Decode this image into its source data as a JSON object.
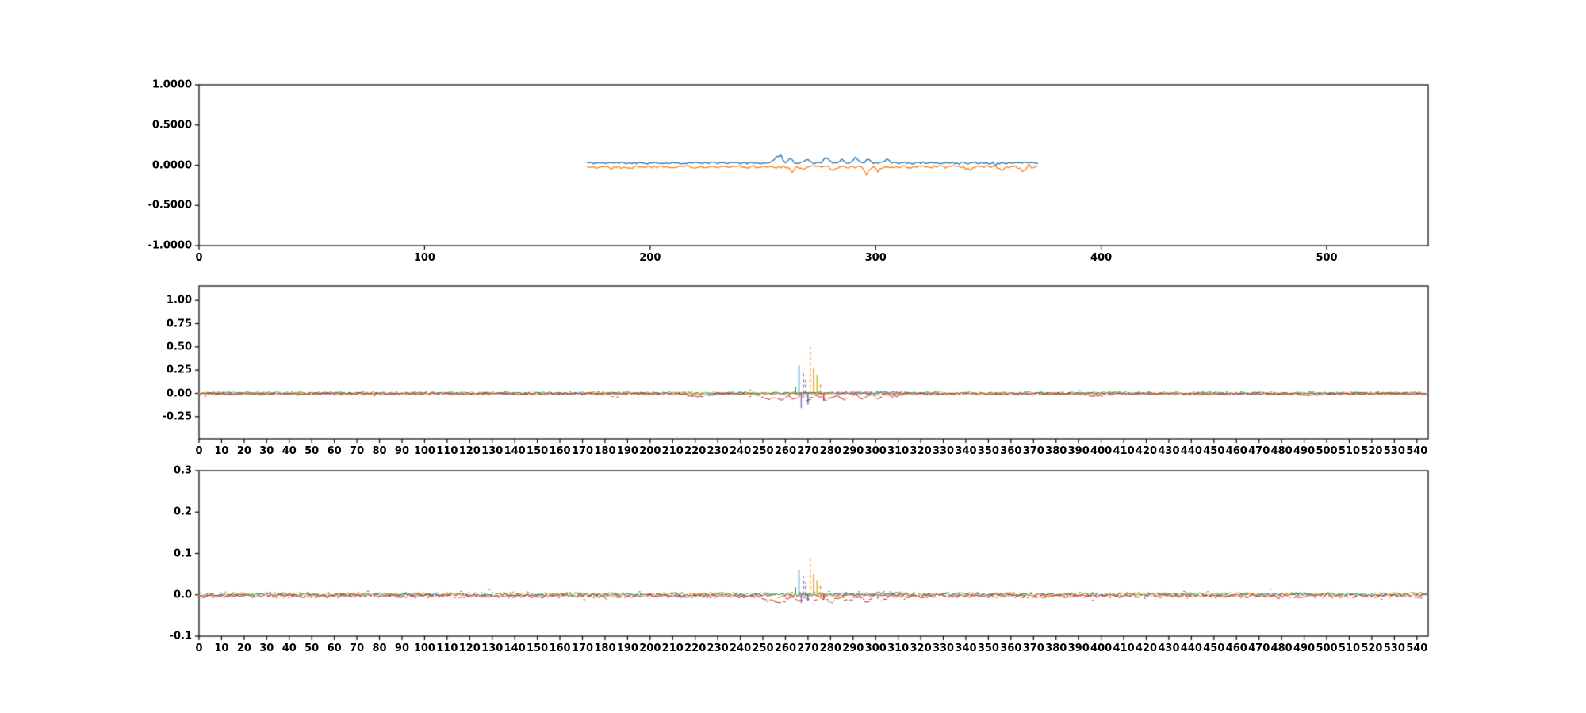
{
  "figure": {
    "background": "#ffffff",
    "frame_color": "#000000",
    "tick_label_color": "#000000"
  },
  "palette": {
    "blue": "#1f77b4",
    "orange": "#ff7f0e",
    "green": "#2ca02c",
    "red": "#d62728",
    "purple": "#9467bd",
    "olive": "#bcbd22"
  },
  "chart_data": [
    {
      "type": "line",
      "title": "",
      "xlabel": "",
      "ylabel": "",
      "grid": false,
      "legend": null,
      "xlim": [
        0,
        545
      ],
      "ylim": [
        -1.0,
        1.0
      ],
      "xticks": [
        0,
        100,
        200,
        300,
        400,
        500
      ],
      "xtick_labels": [
        "0",
        "100",
        "200",
        "300",
        "400",
        "500"
      ],
      "yticks": [
        1.0,
        0.5,
        0.0,
        -0.5,
        -1.0
      ],
      "ytick_labels": [
        "1.0000",
        "0.5000",
        "0.0000",
        "-0.5000",
        "-1.0000"
      ],
      "description": "Two noisy signals present only for x in [172,372]; blue hovers just above 0, orange just below 0, small spikes near x=255-300",
      "series": [
        {
          "name": "signal-blue",
          "kind": "line",
          "color": "#1f77b4",
          "x_start": 172,
          "x_end": 372,
          "baseline": 0.028,
          "noise_amp": 0.012,
          "seed": 11,
          "peaks": [
            [
              256,
              0.07,
              1.4
            ],
            [
              258,
              0.1,
              1.0
            ],
            [
              262,
              0.05,
              1.5
            ],
            [
              270,
              0.045,
              1.5
            ],
            [
              278,
              0.055,
              1.6
            ],
            [
              285,
              0.045,
              1.5
            ],
            [
              291,
              0.08,
              1.2
            ],
            [
              297,
              0.045,
              1.5
            ],
            [
              305,
              0.04,
              1.5
            ]
          ]
        },
        {
          "name": "signal-orange",
          "kind": "line",
          "color": "#ff7f0e",
          "x_start": 172,
          "x_end": 372,
          "baseline": -0.02,
          "noise_amp": 0.016,
          "seed": 22,
          "peaks": [
            [
              263,
              -0.06,
              1.6
            ],
            [
              268,
              -0.045,
              1.5
            ],
            [
              281,
              -0.05,
              1.5
            ],
            [
              296,
              -0.09,
              1.3
            ],
            [
              301,
              -0.055,
              1.4
            ],
            [
              342,
              -0.045,
              1.5
            ],
            [
              356,
              -0.06,
              1.4
            ],
            [
              365,
              -0.05,
              1.3
            ]
          ]
        }
      ]
    },
    {
      "type": "line",
      "title": "",
      "xlabel": "",
      "ylabel": "",
      "grid": false,
      "legend": null,
      "xlim": [
        0,
        545
      ],
      "ylim": [
        -0.49,
        1.155
      ],
      "xticks": [
        0,
        10,
        20,
        30,
        40,
        50,
        60,
        70,
        80,
        90,
        100,
        110,
        120,
        130,
        140,
        150,
        160,
        170,
        180,
        190,
        200,
        210,
        220,
        230,
        240,
        250,
        260,
        270,
        280,
        290,
        300,
        310,
        320,
        330,
        340,
        350,
        360,
        370,
        380,
        390,
        400,
        410,
        420,
        430,
        440,
        450,
        460,
        470,
        480,
        490,
        500,
        510,
        520,
        530,
        540
      ],
      "yticks": [
        1.0,
        0.75,
        0.5,
        0.25,
        0.0,
        -0.25
      ],
      "ytick_labels": [
        "1.00",
        "0.75",
        "0.50",
        "0.25",
        "0.00",
        "-0.25"
      ],
      "description": "Multi-colored residual noise hugging y=0 across full x range; red dips to about -0.08 between x=250-310; burst of vertical spikes near x=265-277 reaching 0.50 (orange dashed) and 0.30 (blue), with negative spikes to -0.16",
      "series": [
        {
          "name": "noise-green",
          "kind": "dashes",
          "color": "#2ca02c",
          "x_start": 0,
          "x_end": 545,
          "baseline": 0.005,
          "noise_amp": 0.01,
          "seed": 3,
          "skip": 0.1
        },
        {
          "name": "noise-blue",
          "kind": "dashes",
          "color": "#1f77b4",
          "x_start": 0,
          "x_end": 545,
          "baseline": 0.0,
          "noise_amp": 0.007,
          "seed": 4,
          "skip": 0.2,
          "dips": [
            [
              218,
              -0.025,
              3
            ],
            [
              226,
              -0.02,
              2
            ]
          ]
        },
        {
          "name": "noise-orange",
          "kind": "dashes",
          "color": "#ff7f0e",
          "x_start": 0,
          "x_end": 545,
          "baseline": -0.004,
          "noise_amp": 0.008,
          "seed": 5,
          "skip": 0.2,
          "dips": [
            [
              300,
              -0.02,
              3
            ]
          ]
        },
        {
          "name": "noise-red",
          "kind": "dashes",
          "color": "#d62728",
          "x_start": 0,
          "x_end": 545,
          "baseline": -0.007,
          "noise_amp": 0.01,
          "seed": 6,
          "skip": 0.15,
          "dips": [
            [
              222,
              -0.03,
              4
            ],
            [
              252,
              -0.05,
              3
            ],
            [
              258,
              -0.06,
              3
            ],
            [
              264,
              -0.05,
              2
            ],
            [
              270,
              -0.07,
              2
            ],
            [
              278,
              -0.06,
              3
            ],
            [
              286,
              -0.05,
              3
            ],
            [
              294,
              -0.06,
              2
            ],
            [
              301,
              -0.05,
              2
            ],
            [
              308,
              -0.03,
              2
            ],
            [
              397,
              -0.022,
              3
            ],
            [
              492,
              -0.02,
              3
            ]
          ]
        },
        {
          "name": "noise-purple-post-event",
          "kind": "dashes",
          "color": "#9467bd",
          "x_start": 282,
          "x_end": 312,
          "baseline": 0.01,
          "noise_amp": 0.01,
          "seed": 9,
          "skip": 0.3
        },
        {
          "name": "event-spikes",
          "kind": "vspikes",
          "spikes": [
            {
              "x": 264.5,
              "y": 0.07,
              "color": "#2ca02c",
              "dash": false
            },
            {
              "x": 266.0,
              "y": 0.3,
              "color": "#1f77b4",
              "dash": false
            },
            {
              "x": 267.0,
              "y": -0.16,
              "color": "#9467bd",
              "dash": false
            },
            {
              "x": 268.0,
              "y": 0.24,
              "color": "#9467bd",
              "dash": true
            },
            {
              "x": 269.0,
              "y": 0.14,
              "color": "#1f77b4",
              "dash": true
            },
            {
              "x": 270.0,
              "y": -0.12,
              "color": "#1f77b4",
              "dash": false
            },
            {
              "x": 271.0,
              "y": 0.5,
              "color": "#ff7f0e",
              "dash": true
            },
            {
              "x": 272.5,
              "y": 0.28,
              "color": "#ff7f0e",
              "dash": false
            },
            {
              "x": 274.0,
              "y": 0.2,
              "color": "#bcbd22",
              "dash": false
            },
            {
              "x": 275.5,
              "y": 0.12,
              "color": "#ff7f0e",
              "dash": true
            },
            {
              "x": 277.0,
              "y": -0.08,
              "color": "#d62728",
              "dash": false
            }
          ]
        }
      ]
    },
    {
      "type": "line",
      "title": "",
      "xlabel": "",
      "ylabel": "",
      "grid": false,
      "legend": null,
      "xlim": [
        0,
        545
      ],
      "ylim": [
        -0.1,
        0.3
      ],
      "xticks": [
        0,
        10,
        20,
        30,
        40,
        50,
        60,
        70,
        80,
        90,
        100,
        110,
        120,
        130,
        140,
        150,
        160,
        170,
        180,
        190,
        200,
        210,
        220,
        230,
        240,
        250,
        260,
        270,
        280,
        290,
        300,
        310,
        320,
        330,
        340,
        350,
        360,
        370,
        380,
        390,
        400,
        410,
        420,
        430,
        440,
        450,
        460,
        470,
        480,
        490,
        500,
        510,
        520,
        530,
        540
      ],
      "yticks": [
        0.3,
        0.2,
        0.1,
        0.0,
        -0.1
      ],
      "ytick_labels": [
        "0.3",
        "0.2",
        "0.1",
        "0.0",
        "-0.1"
      ],
      "description": "Same residual noise at smaller scale; spike burst near x=265-277 reaching 0.09 (orange dashed) and 0.06 (blue), small negative red dips between x=250-305",
      "series": [
        {
          "name": "noise-green",
          "kind": "dashes",
          "color": "#2ca02c",
          "x_start": 0,
          "x_end": 545,
          "baseline": 0.0015,
          "noise_amp": 0.004,
          "seed": 13,
          "skip": 0.1
        },
        {
          "name": "noise-blue",
          "kind": "dashes",
          "color": "#1f77b4",
          "x_start": 0,
          "x_end": 545,
          "baseline": 0.0,
          "noise_amp": 0.003,
          "seed": 14,
          "skip": 0.2,
          "dips": [
            [
              218,
              -0.008,
              3
            ]
          ]
        },
        {
          "name": "noise-orange",
          "kind": "dashes",
          "color": "#ff7f0e",
          "x_start": 0,
          "x_end": 545,
          "baseline": -0.001,
          "noise_amp": 0.0035,
          "seed": 15,
          "skip": 0.2
        },
        {
          "name": "noise-red",
          "kind": "dashes",
          "color": "#d62728",
          "x_start": 0,
          "x_end": 545,
          "baseline": -0.003,
          "noise_amp": 0.004,
          "seed": 16,
          "skip": 0.15,
          "dips": [
            [
              252,
              -0.012,
              3
            ],
            [
              258,
              -0.014,
              3
            ],
            [
              266,
              -0.012,
              2
            ],
            [
              272,
              -0.016,
              2
            ],
            [
              280,
              -0.014,
              3
            ],
            [
              288,
              -0.012,
              3
            ],
            [
              296,
              -0.014,
              2
            ],
            [
              303,
              -0.01,
              2
            ]
          ]
        },
        {
          "name": "noise-purple-post-event",
          "kind": "dashes",
          "color": "#9467bd",
          "x_start": 282,
          "x_end": 312,
          "baseline": 0.004,
          "noise_amp": 0.004,
          "seed": 19,
          "skip": 0.3
        },
        {
          "name": "event-spikes",
          "kind": "vspikes",
          "spikes": [
            {
              "x": 264.5,
              "y": 0.018,
              "color": "#2ca02c",
              "dash": false
            },
            {
              "x": 266.0,
              "y": 0.06,
              "color": "#1f77b4",
              "dash": false
            },
            {
              "x": 267.0,
              "y": -0.02,
              "color": "#9467bd",
              "dash": false
            },
            {
              "x": 268.0,
              "y": 0.045,
              "color": "#9467bd",
              "dash": true
            },
            {
              "x": 269.0,
              "y": 0.03,
              "color": "#1f77b4",
              "dash": true
            },
            {
              "x": 270.0,
              "y": -0.015,
              "color": "#1f77b4",
              "dash": false
            },
            {
              "x": 271.0,
              "y": 0.09,
              "color": "#ff7f0e",
              "dash": true
            },
            {
              "x": 272.5,
              "y": 0.05,
              "color": "#ff7f0e",
              "dash": false
            },
            {
              "x": 274.0,
              "y": 0.035,
              "color": "#bcbd22",
              "dash": false
            },
            {
              "x": 275.5,
              "y": 0.022,
              "color": "#ff7f0e",
              "dash": true
            },
            {
              "x": 277.0,
              "y": -0.012,
              "color": "#d62728",
              "dash": false
            }
          ]
        }
      ]
    }
  ]
}
